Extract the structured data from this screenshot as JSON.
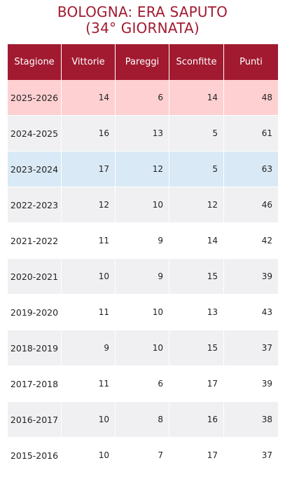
{
  "title": {
    "line1": "BOLOGNA: ERA SAPUTO",
    "line2": "(34° GIORNATA)"
  },
  "colors": {
    "header_bg": "#a11a30",
    "title_color": "#a11a30",
    "highlight_current": "#ffd0d2",
    "highlight_best": "#d9e9f5",
    "row_alt": "#f0f0f2"
  },
  "chart_data": {
    "type": "table",
    "columns": [
      "Stagione",
      "Vittorie",
      "Pareggi",
      "Sconfitte",
      "Punti"
    ],
    "rows": [
      {
        "stagione": "2025-2026",
        "vittorie": "14",
        "pareggi": "6",
        "sconfitte": "14",
        "punti": "48",
        "highlight": "red"
      },
      {
        "stagione": "2024-2025",
        "vittorie": "16",
        "pareggi": "13",
        "sconfitte": "5",
        "punti": "61",
        "highlight": "grey"
      },
      {
        "stagione": "2023-2024",
        "vittorie": "17",
        "pareggi": "12",
        "sconfitte": "5",
        "punti": "63",
        "highlight": "blue"
      },
      {
        "stagione": "2022-2023",
        "vittorie": "12",
        "pareggi": "10",
        "sconfitte": "12",
        "punti": "46",
        "highlight": "grey"
      },
      {
        "stagione": "2021-2022",
        "vittorie": "11",
        "pareggi": "9",
        "sconfitte": "14",
        "punti": "42",
        "highlight": "white"
      },
      {
        "stagione": "2020-2021",
        "vittorie": "10",
        "pareggi": "9",
        "sconfitte": "15",
        "punti": "39",
        "highlight": "grey"
      },
      {
        "stagione": "2019-2020",
        "vittorie": "11",
        "pareggi": "10",
        "sconfitte": "13",
        "punti": "43",
        "highlight": "white"
      },
      {
        "stagione": "2018-2019",
        "vittorie": "9",
        "pareggi": "10",
        "sconfitte": "15",
        "punti": "37",
        "highlight": "grey"
      },
      {
        "stagione": "2017-2018",
        "vittorie": "11",
        "pareggi": "6",
        "sconfitte": "17",
        "punti": "39",
        "highlight": "white"
      },
      {
        "stagione": "2016-2017",
        "vittorie": "10",
        "pareggi": "8",
        "sconfitte": "16",
        "punti": "38",
        "highlight": "grey"
      },
      {
        "stagione": "2015-2016",
        "vittorie": "10",
        "pareggi": "7",
        "sconfitte": "17",
        "punti": "37",
        "highlight": "white"
      }
    ]
  }
}
